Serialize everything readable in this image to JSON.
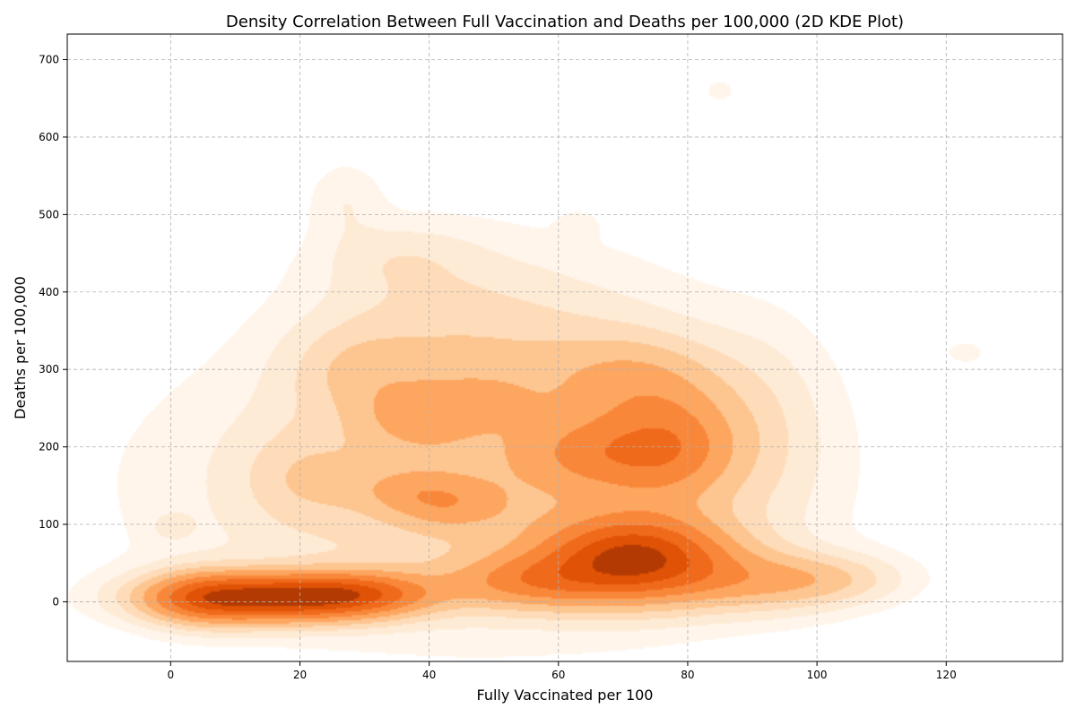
{
  "chart_data": {
    "type": "heatmap",
    "title": "Density Correlation Between Full Vaccination and Deaths per 100,000 (2D KDE Plot)",
    "xlabel": "Fully Vaccinated per 100",
    "ylabel": "Deaths per 100,000",
    "xlim": [
      -16,
      138
    ],
    "ylim": [
      -77,
      733
    ],
    "xticks": [
      0,
      20,
      40,
      60,
      80,
      100,
      120
    ],
    "yticks": [
      0,
      100,
      200,
      300,
      400,
      500,
      600,
      700
    ],
    "grid": true,
    "colormap": [
      "#fff5eb",
      "#feebd6",
      "#fedcb9",
      "#fdc590",
      "#fda660",
      "#f9873a",
      "#f06a1c",
      "#e05206",
      "#b33b03"
    ],
    "density_blobs": [
      {
        "x": 47,
        "y": 150,
        "sx": 30,
        "sy": 120,
        "w": 0.3
      },
      {
        "x": 40,
        "y": 360,
        "sx": 14,
        "sy": 80,
        "w": 0.14
      },
      {
        "x": 60,
        "y": 300,
        "sx": 18,
        "sy": 100,
        "w": 0.14
      },
      {
        "x": 15,
        "y": 5,
        "sx": 12,
        "sy": 22,
        "w": 1.0
      },
      {
        "x": 30,
        "y": 10,
        "sx": 8,
        "sy": 20,
        "w": 0.45
      },
      {
        "x": 4,
        "y": 5,
        "sx": 6,
        "sy": 26,
        "w": 0.3
      },
      {
        "x": 72,
        "y": 55,
        "sx": 10,
        "sy": 38,
        "w": 0.95
      },
      {
        "x": 55,
        "y": 25,
        "sx": 9,
        "sy": 25,
        "w": 0.4
      },
      {
        "x": 78,
        "y": 200,
        "sx": 7,
        "sy": 50,
        "w": 0.42
      },
      {
        "x": 66,
        "y": 190,
        "sx": 8,
        "sy": 35,
        "w": 0.3
      },
      {
        "x": 72,
        "y": 290,
        "sx": 9,
        "sy": 40,
        "w": 0.22
      },
      {
        "x": 92,
        "y": 25,
        "sx": 10,
        "sy": 28,
        "w": 0.3
      },
      {
        "x": 103,
        "y": 30,
        "sx": 8,
        "sy": 22,
        "w": 0.16
      },
      {
        "x": 92,
        "y": 220,
        "sx": 7,
        "sy": 90,
        "w": 0.12
      },
      {
        "x": 38,
        "y": 240,
        "sx": 6,
        "sy": 30,
        "w": 0.2
      },
      {
        "x": 48,
        "y": 260,
        "sx": 5,
        "sy": 20,
        "w": 0.15
      },
      {
        "x": 43,
        "y": 125,
        "sx": 6,
        "sy": 22,
        "w": 0.22
      },
      {
        "x": 36,
        "y": 145,
        "sx": 6,
        "sy": 20,
        "w": 0.15
      },
      {
        "x": 28,
        "y": 300,
        "sx": 7,
        "sy": 40,
        "w": 0.14
      },
      {
        "x": 27,
        "y": 520,
        "sx": 4,
        "sy": 35,
        "w": 0.1
      },
      {
        "x": 35,
        "y": 445,
        "sx": 8,
        "sy": 30,
        "w": 0.1
      },
      {
        "x": 85,
        "y": 660,
        "sx": 2,
        "sy": 12,
        "w": 0.08
      },
      {
        "x": 63,
        "y": 485,
        "sx": 2,
        "sy": 12,
        "w": 0.08
      },
      {
        "x": 0,
        "y": 97,
        "sx": 2.5,
        "sy": 14,
        "w": 0.08
      },
      {
        "x": 123,
        "y": 322,
        "sx": 2.5,
        "sy": 12,
        "w": 0.08
      },
      {
        "x": 20,
        "y": 160,
        "sx": 6,
        "sy": 40,
        "w": 0.12
      }
    ]
  }
}
